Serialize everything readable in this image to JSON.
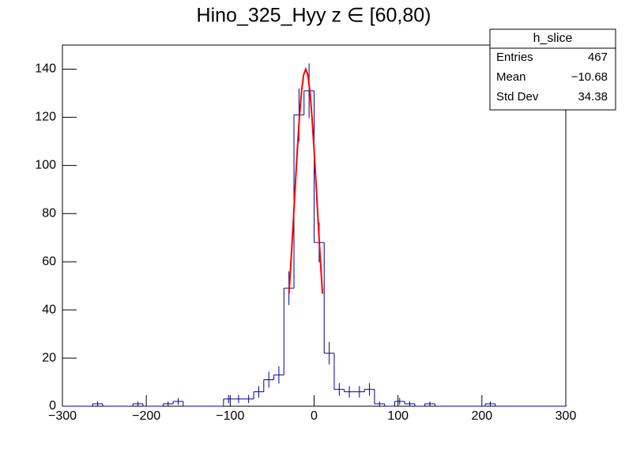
{
  "chart_data": {
    "type": "histogram",
    "title": "Hino_325_Hyy z  ∈ [60,80)",
    "bins": [
      -300,
      -288,
      -276,
      -264,
      -252,
      -240,
      -228,
      -216,
      -204,
      -192,
      -180,
      -168,
      -156,
      -144,
      -132,
      -120,
      -108,
      -96,
      -84,
      -72,
      -60,
      -48,
      -36,
      -24,
      -12,
      0,
      12,
      24,
      36,
      48,
      60,
      72,
      84,
      96,
      108,
      120,
      132,
      144,
      156,
      168,
      180,
      192,
      204,
      216,
      228,
      240,
      252,
      264,
      276,
      288,
      300
    ],
    "values": [
      0,
      0,
      0,
      1,
      0,
      0,
      0,
      1,
      0,
      0,
      1,
      2,
      0,
      0,
      0,
      0,
      3,
      3,
      3,
      6,
      11,
      13,
      49,
      121,
      131,
      68,
      22,
      7,
      6,
      6,
      7,
      1,
      0,
      2,
      1,
      0,
      1,
      0,
      0,
      0,
      0,
      0,
      1,
      0,
      0,
      0,
      0,
      0,
      0,
      0
    ],
    "errors": [
      0,
      0,
      0,
      1,
      0,
      0,
      0,
      1,
      0,
      0,
      1,
      1.4,
      0,
      0,
      0,
      0,
      1.7,
      1.7,
      1.7,
      2.4,
      3.3,
      3.6,
      7,
      11,
      11.4,
      8.2,
      4.7,
      2.6,
      2.4,
      2.4,
      2.6,
      1,
      0,
      1.4,
      1,
      0,
      1,
      0,
      0,
      0,
      0,
      0,
      1,
      0,
      0,
      0,
      0,
      0,
      0,
      0
    ],
    "color": "#000099",
    "fit": {
      "color": "#ff0000",
      "x": [
        -30,
        -27.5,
        -25,
        -22.5,
        -20,
        -17.5,
        -15,
        -12.5,
        -10,
        -7.5,
        -5,
        -2.5,
        0,
        2.5,
        5,
        7.5,
        10
      ],
      "y": [
        46.7,
        60.5,
        75.5,
        91.2,
        106.4,
        120,
        130.7,
        137.6,
        140,
        137.6,
        130.7,
        120,
        106.4,
        91.2,
        75.5,
        60.5,
        46.7
      ]
    },
    "xlim": [
      -300,
      300
    ],
    "xticks": [
      {
        "value": -300,
        "label": "−300"
      },
      {
        "value": -200,
        "label": "−200"
      },
      {
        "value": -100,
        "label": "−100"
      },
      0,
      100,
      200,
      300
    ],
    "ylim": [
      0,
      150
    ],
    "yticks": [
      0,
      20,
      40,
      60,
      80,
      100,
      120,
      140
    ],
    "stats": {
      "title": "h_slice",
      "rows": [
        [
          "Entries",
          "467"
        ],
        [
          "Mean",
          "−10.68"
        ],
        [
          "Std Dev",
          "34.38"
        ]
      ]
    }
  }
}
